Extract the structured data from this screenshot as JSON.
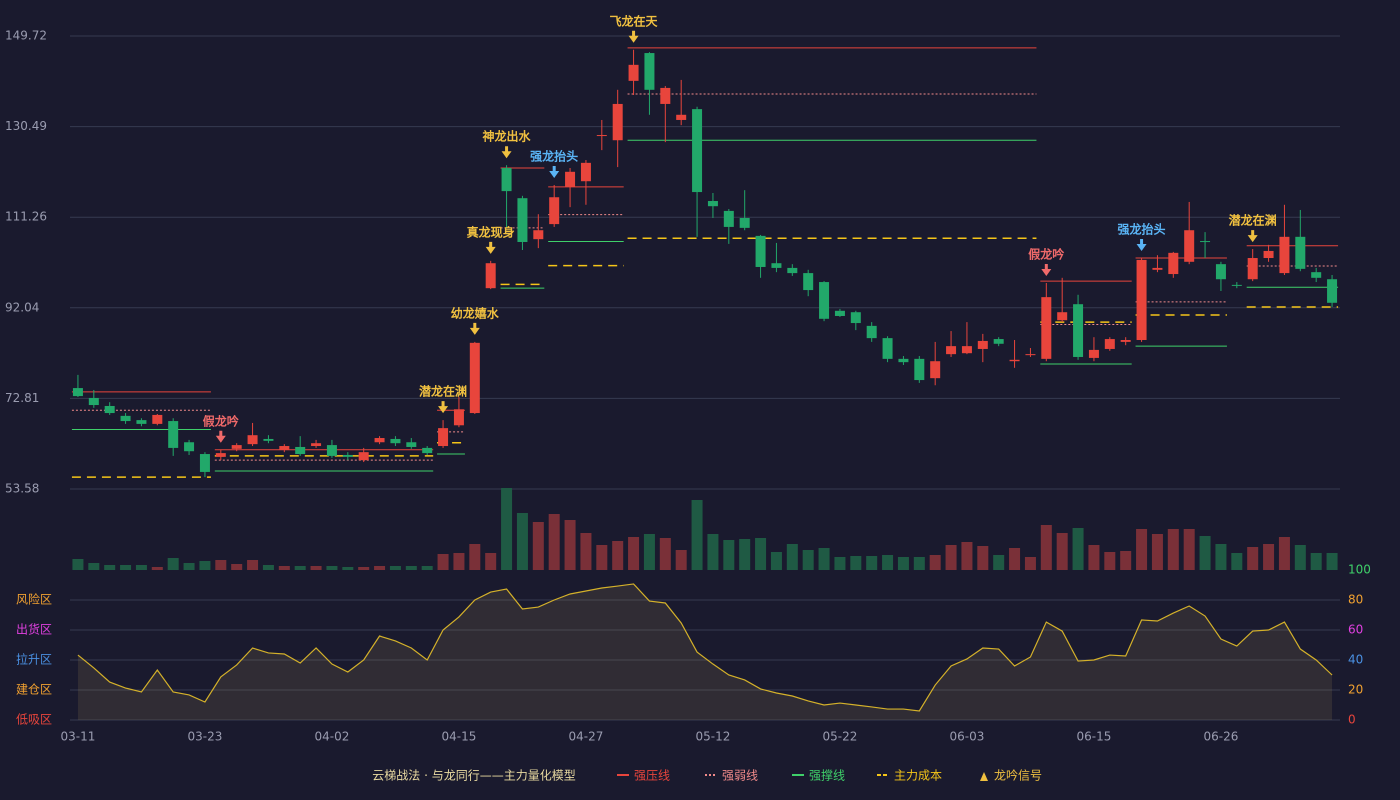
{
  "chart_data": {
    "type": "candlestick",
    "categories": [
      "03-11",
      null,
      null,
      null,
      null,
      null,
      null,
      null,
      "03-23",
      null,
      null,
      null,
      null,
      null,
      null,
      null,
      "04-02",
      null,
      null,
      null,
      null,
      null,
      null,
      null,
      "04-15",
      null,
      null,
      null,
      null,
      null,
      null,
      null,
      "04-27",
      null,
      null,
      null,
      null,
      null,
      null,
      null,
      "05-12",
      null,
      null,
      null,
      null,
      null,
      null,
      null,
      "05-22",
      null,
      null,
      null,
      null,
      null,
      null,
      null,
      "06-03",
      null,
      null,
      null,
      null,
      null,
      null,
      null,
      "06-15",
      null,
      null,
      null,
      null,
      null,
      null,
      null,
      "06-26",
      null,
      null,
      null,
      null,
      null,
      null,
      null
    ],
    "open": [
      75.0,
      72.9,
      71.2,
      69.1,
      68.2,
      67.4,
      68.0,
      63.5,
      61.0,
      60.4,
      62.1,
      63.1,
      64.2,
      61.9,
      62.5,
      62.7,
      62.9,
      60.8,
      59.7,
      63.5,
      64.2,
      63.5,
      62.3,
      62.7,
      67.1,
      69.7,
      96.2,
      121.7,
      115.3,
      106.6,
      109.8,
      117.7,
      118.9,
      128.5,
      127.6,
      140.2,
      146.1,
      135.3,
      131.9,
      134.2,
      114.7,
      112.6,
      111.1,
      107.3,
      101.5,
      100.5,
      99.4,
      97.5,
      91.4,
      91.1,
      88.2,
      85.6,
      81.2,
      81.2,
      77.1,
      82.2,
      82.4,
      83.3,
      85.4,
      80.7,
      82.0,
      81.2,
      89.4,
      92.8,
      81.4,
      83.3,
      84.8,
      85.2,
      100.1,
      99.2,
      101.8,
      106.2,
      101.3,
      96.9,
      98.1,
      102.6,
      99.4,
      107.1,
      99.6,
      98.1
    ],
    "close": [
      73.3,
      71.4,
      69.7,
      68.0,
      67.4,
      69.3,
      62.3,
      61.6,
      57.2,
      61.2,
      62.9,
      65.0,
      63.8,
      62.7,
      61.0,
      63.3,
      60.6,
      60.4,
      61.4,
      64.4,
      63.3,
      62.5,
      61.2,
      66.5,
      70.5,
      84.6,
      101.5,
      116.8,
      106.0,
      108.5,
      115.5,
      120.9,
      122.8,
      128.7,
      135.3,
      143.6,
      138.3,
      138.7,
      133.0,
      116.6,
      113.6,
      109.2,
      109.0,
      100.7,
      100.5,
      99.4,
      95.8,
      89.7,
      90.3,
      88.8,
      85.6,
      81.2,
      80.5,
      76.7,
      80.7,
      83.9,
      83.9,
      85.0,
      84.4,
      81.0,
      82.2,
      94.3,
      91.1,
      81.6,
      83.1,
      85.4,
      85.2,
      102.2,
      100.5,
      103.7,
      108.5,
      106.0,
      98.1,
      96.7,
      102.6,
      104.1,
      107.1,
      100.3,
      98.4,
      93.1
    ],
    "high": [
      77.8,
      74.6,
      72.0,
      69.7,
      68.6,
      69.5,
      68.6,
      64.0,
      61.4,
      61.9,
      63.3,
      67.6,
      65.0,
      63.1,
      64.8,
      64.0,
      64.0,
      61.4,
      62.3,
      64.8,
      64.8,
      64.4,
      62.7,
      68.2,
      73.1,
      84.8,
      102.0,
      122.3,
      115.8,
      111.9,
      118.1,
      121.7,
      123.4,
      131.9,
      138.3,
      146.8,
      146.3,
      139.1,
      140.4,
      134.7,
      116.4,
      113.0,
      117.0,
      107.5,
      105.8,
      101.3,
      100.1,
      97.7,
      91.8,
      91.4,
      89.0,
      86.0,
      81.8,
      81.8,
      84.8,
      87.1,
      89.0,
      86.5,
      85.8,
      85.2,
      83.5,
      97.3,
      98.4,
      94.8,
      85.8,
      85.8,
      85.8,
      102.6,
      103.2,
      103.9,
      114.5,
      108.1,
      101.8,
      97.5,
      104.5,
      105.4,
      113.9,
      112.8,
      100.5,
      99.0
    ],
    "low": [
      73.1,
      70.8,
      69.3,
      67.4,
      66.9,
      67.1,
      60.6,
      60.8,
      56.1,
      59.7,
      61.6,
      62.7,
      63.3,
      61.4,
      60.6,
      62.3,
      60.2,
      59.7,
      59.3,
      63.1,
      62.7,
      62.1,
      60.8,
      62.3,
      66.7,
      69.5,
      96.0,
      109.0,
      104.3,
      104.7,
      109.2,
      113.4,
      113.9,
      125.5,
      121.9,
      137.2,
      133.0,
      127.2,
      130.8,
      107.1,
      111.1,
      105.6,
      108.5,
      98.4,
      99.6,
      98.8,
      94.5,
      89.2,
      90.1,
      87.3,
      84.8,
      80.5,
      79.9,
      76.1,
      75.6,
      81.6,
      82.2,
      80.5,
      83.9,
      79.3,
      81.6,
      80.7,
      89.0,
      81.0,
      80.7,
      82.9,
      84.1,
      84.8,
      99.6,
      98.4,
      101.3,
      102.6,
      95.6,
      96.2,
      97.7,
      101.8,
      99.0,
      99.8,
      97.5,
      92.2
    ],
    "up_color": "#e8453c",
    "down_color": "#22a86a",
    "ylim": [
      53.58,
      149.72
    ],
    "yticks": [
      53.58,
      72.81,
      92.04,
      111.26,
      130.49,
      149.72
    ],
    "grid": true,
    "volume": [
      11,
      7,
      5,
      5,
      5,
      3,
      12,
      7,
      9,
      10,
      6,
      10,
      5,
      4,
      4,
      4,
      4,
      3,
      3,
      4,
      4,
      4,
      4,
      16,
      17,
      26,
      17,
      82,
      57,
      48,
      56,
      50,
      37,
      25,
      29,
      33,
      36,
      32,
      20,
      70,
      36,
      30,
      31,
      32,
      18,
      26,
      20,
      22,
      13,
      14,
      14,
      15,
      13,
      13,
      15,
      25,
      28,
      24,
      15,
      22,
      13,
      45,
      37,
      42,
      25,
      18,
      19,
      41,
      36,
      41,
      41,
      34,
      26,
      17,
      23,
      26,
      33,
      25,
      17,
      17
    ],
    "volume_ylim": [
      0,
      82
    ],
    "oscillator": {
      "values": [
        43.3,
        34.7,
        25.3,
        21.3,
        18.7,
        33.3,
        18.7,
        16.7,
        12,
        28.7,
        36.7,
        48,
        44.7,
        44,
        38,
        48,
        37.3,
        32,
        40,
        56,
        52.7,
        48,
        40,
        60,
        68.7,
        80,
        85.3,
        87.3,
        74,
        75.3,
        80,
        84,
        86,
        88,
        89.3,
        90.7,
        79.3,
        78,
        64.7,
        45.3,
        37.3,
        30,
        26.7,
        20.7,
        18,
        16,
        12.7,
        10,
        11.3,
        10,
        8.7,
        7.3,
        7.3,
        6,
        23.3,
        36,
        40.7,
        48,
        47.3,
        36,
        42,
        65.3,
        59.3,
        39.3,
        40,
        43.3,
        42.7,
        66.7,
        66,
        71.3,
        76,
        69.3,
        54,
        49.3,
        59.3,
        60,
        65.3,
        47.3,
        40,
        30
      ],
      "color": "#d4b12a",
      "ylim": [
        0,
        100
      ],
      "yticks": [
        0,
        20,
        40,
        60,
        80,
        100
      ],
      "ytick_colors": [
        "#e8453c",
        "#f0a030",
        "#4a90e2",
        "#e040e0",
        "#f0a030",
        "#3fd06a"
      ],
      "zones": [
        {
          "label": "风险区",
          "value": 80,
          "color": "#f0a030"
        },
        {
          "label": "出货区",
          "value": 60,
          "color": "#e040e0"
        },
        {
          "label": "拉升区",
          "value": 40,
          "color": "#4a90e2"
        },
        {
          "label": "建仓区",
          "value": 20,
          "color": "#f0a030"
        },
        {
          "label": "低吸区",
          "value": 0,
          "color": "#e8453c"
        }
      ]
    },
    "levels": [
      {
        "start": 0,
        "end": 8,
        "pressure": 74.2,
        "weak": 70.3,
        "support": 66.2,
        "cost": 56.1
      },
      {
        "start": 9,
        "end": 22,
        "pressure": 61.9,
        "weak": 59.7,
        "support": 57.4,
        "cost": 60.6
      },
      {
        "start": 23,
        "end": 24,
        "pressure": 70.3,
        "weak": 65.7,
        "support": 61.0,
        "cost": 63.4
      },
      {
        "start": 27,
        "end": 29,
        "pressure": 121.7,
        "weak": 109.0,
        "support": 96.2,
        "cost": 97.0
      },
      {
        "start": 30,
        "end": 34,
        "pressure": 117.7,
        "weak": 111.8,
        "support": 106.1,
        "cost": 101.0
      },
      {
        "start": 35,
        "end": 60,
        "pressure": 147.2,
        "weak": 137.4,
        "support": 127.6,
        "cost": 106.8
      },
      {
        "start": 61,
        "end": 66,
        "pressure": 97.7,
        "weak": 88.5,
        "support": 80.1,
        "cost": 89.0
      },
      {
        "start": 67,
        "end": 72,
        "pressure": 102.6,
        "weak": 93.3,
        "support": 83.9,
        "cost": 90.5
      },
      {
        "start": 74,
        "end": 79,
        "pressure": 105.2,
        "weak": 100.9,
        "support": 96.4,
        "cost": 92.2
      }
    ],
    "annotations": [
      {
        "index": 9,
        "text": "假龙吟",
        "color": "#f06a6a"
      },
      {
        "index": 23,
        "text": "潜龙在渊",
        "color": "#f0c040"
      },
      {
        "index": 25,
        "text": "幼龙嬉水",
        "color": "#f0c040"
      },
      {
        "index": 26,
        "text": "真龙现身",
        "color": "#f0c040"
      },
      {
        "index": 27,
        "text": "神龙出水",
        "color": "#f0c040"
      },
      {
        "index": 30,
        "text": "强龙抬头",
        "color": "#5ab4f5"
      },
      {
        "index": 35,
        "text": "飞龙在天",
        "color": "#f0c040"
      },
      {
        "index": 61,
        "text": "假龙吟",
        "color": "#f06a6a"
      },
      {
        "index": 67,
        "text": "强龙抬头",
        "color": "#5ab4f5"
      },
      {
        "index": 74,
        "text": "潜龙在渊",
        "color": "#f0c040"
      }
    ],
    "legend_title": "云梯战法 · 与龙同行——主力量化模型",
    "legend": [
      {
        "label": "强压线",
        "color": "#e8453c",
        "style": "solid"
      },
      {
        "label": "强弱线",
        "color": "#f08a8a",
        "style": "dotted"
      },
      {
        "label": "强撑线",
        "color": "#3fd06a",
        "style": "solid"
      },
      {
        "label": "主力成本",
        "color": "#f5c518",
        "style": "dashed"
      },
      {
        "label": "龙吟信号",
        "color": "#f0c040",
        "style": "triangle"
      }
    ]
  }
}
